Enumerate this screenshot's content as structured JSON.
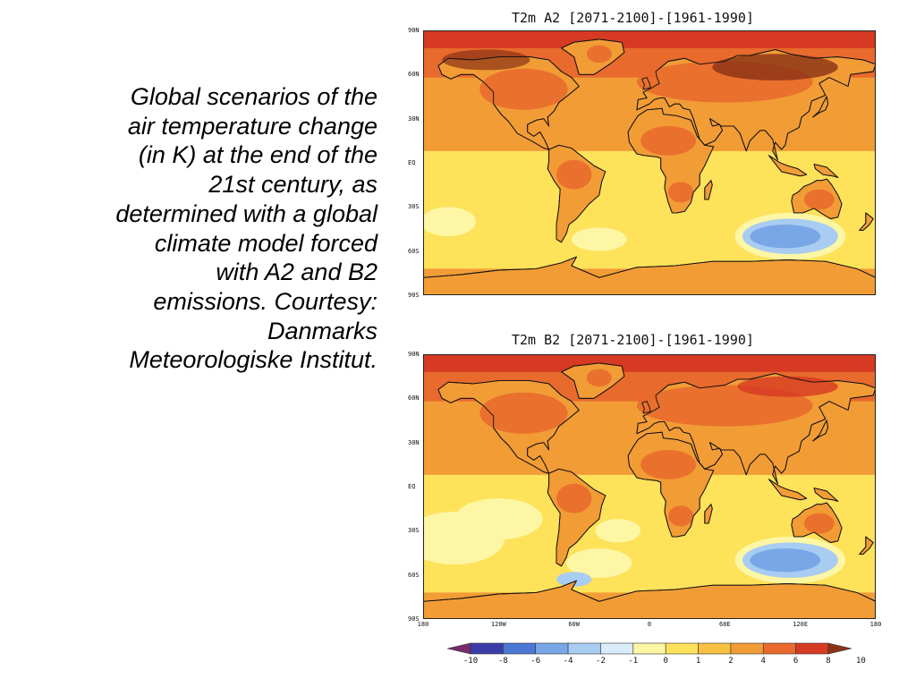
{
  "caption": {
    "lines": [
      "Global scenarios of the",
      "air temperature change",
      "(in K) at the end of the",
      "21st century, as",
      "determined with a global",
      "climate model forced",
      "with A2 and B2",
      "emissions. Courtesy:",
      "Danmarks",
      "Meteorologiske Institut."
    ]
  },
  "panels": [
    {
      "title": "T2m A2 [2071-2100]-[1961-1990]",
      "scenario": "A2"
    },
    {
      "title": "T2m B2 [2071-2100]-[1961-1990]",
      "scenario": "B2"
    }
  ],
  "lat_ticks": [
    "90N",
    "60N",
    "30N",
    "EQ",
    "30S",
    "60S",
    "90S"
  ],
  "lon_ticks": [
    "180",
    "120W",
    "60W",
    "0",
    "60E",
    "120E",
    "180"
  ],
  "colorbar": {
    "labels": [
      "-10",
      "-8",
      "-6",
      "-4",
      "-2",
      "-1",
      "0",
      "1",
      "2",
      "4",
      "6",
      "8",
      "10"
    ],
    "colors": [
      "#7a2a6e",
      "#3c3ca8",
      "#4a78d2",
      "#78a6e6",
      "#a8ccf2",
      "#d8ecfa",
      "#fdf6a4",
      "#fde25a",
      "#f8c040",
      "#f29c36",
      "#e86a2c",
      "#d63a22",
      "#8a3216"
    ]
  },
  "colors": {
    "background": "#ffffff",
    "ocean_base": "#fde25a",
    "warm": "#f29c36",
    "hot": "#e86a2c",
    "hottest": "#d63a22",
    "polar": "#8a3216",
    "cool": "#fdf6a4",
    "cold": "#a8ccf2",
    "coldest": "#78a6e6",
    "coast": "#111111"
  }
}
